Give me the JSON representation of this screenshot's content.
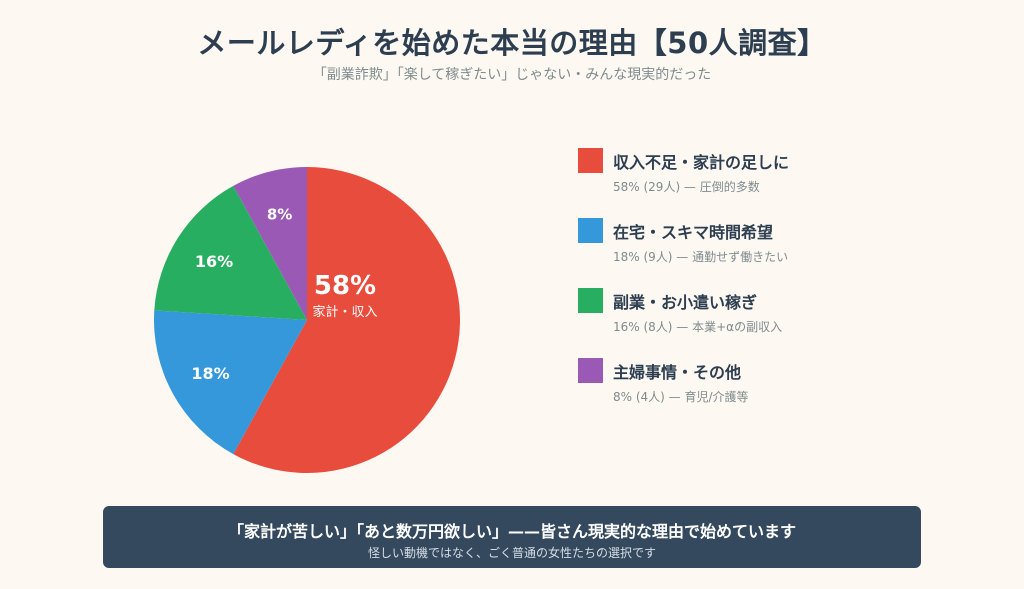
{
  "header": {
    "title": "メールレディを始めた本当の理由【50人調査】",
    "subtitle": "「副業詐欺」「楽して稼ぎたい」じゃない・みんな現実的だった"
  },
  "chart_data": {
    "type": "pie",
    "slices": [
      {
        "label": "収入不足・家計の足しに",
        "value": 58,
        "pct_label": "58%",
        "sub_label": "家計・収入",
        "color": "#e74c3c",
        "detail": "58% (29人) — 圧倒的多数"
      },
      {
        "label": "在宅・スキマ時間希望",
        "value": 18,
        "pct_label": "18%",
        "color": "#3498db",
        "detail": "18% (9人) — 通勤せず働きたい"
      },
      {
        "label": "副業・お小遣い稼ぎ",
        "value": 16,
        "pct_label": "16%",
        "color": "#27ae60",
        "detail": "16% (8人) — 本業+αの副収入"
      },
      {
        "label": "主婦事情・その他",
        "value": 8,
        "pct_label": "8%",
        "color": "#9b59b6",
        "detail": "8% (4人) — 育児/介護等"
      }
    ],
    "legend_position": "right"
  },
  "banner": {
    "main": "「家計が苦しい」「あと数万円欲しい」——皆さん現実的な理由で始めています",
    "sub": "怪しい動機ではなく、ごく普通の女性たちの選択です"
  }
}
